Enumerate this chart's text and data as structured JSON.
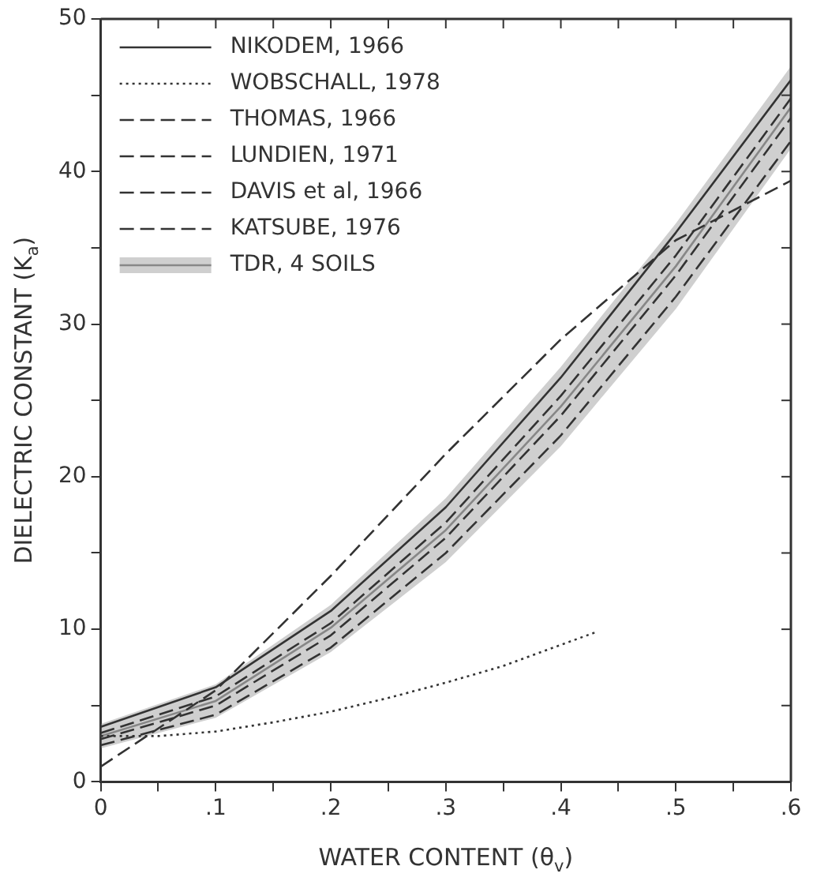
{
  "chart_data": {
    "type": "line",
    "xlabel": "WATER CONTENT (θ$_{v}$)",
    "ylabel": "DIELECTRIC CONSTANT (K$_{a}$)",
    "xlim": [
      0,
      0.6
    ],
    "ylim": [
      0,
      50
    ],
    "xticks": [
      0,
      {
        "value": 0.05,
        "label": null
      },
      {
        "value": 0.1,
        "label": ".1"
      },
      {
        "value": 0.15,
        "label": null
      },
      {
        "value": 0.2,
        "label": ".2"
      },
      {
        "value": 0.25,
        "label": null
      },
      {
        "value": 0.3,
        "label": ".3"
      },
      {
        "value": 0.35,
        "label": null
      },
      {
        "value": 0.4,
        "label": ".4"
      },
      {
        "value": 0.45,
        "label": null
      },
      {
        "value": 0.5,
        "label": ".5"
      },
      {
        "value": 0.55,
        "label": null
      },
      {
        "value": 0.6,
        "label": ".6"
      }
    ],
    "yticks": [
      0,
      {
        "value": 5,
        "label": null
      },
      10,
      {
        "value": 15,
        "label": null
      },
      20,
      {
        "value": 25,
        "label": null
      },
      30,
      {
        "value": 35,
        "label": null
      },
      40,
      {
        "value": 45,
        "label": null
      },
      50
    ],
    "grid": false,
    "legend": "top left",
    "marker": "none",
    "series": [
      {
        "name": "NIKODEM, 1966",
        "color": "#333333",
        "line_style": "solid",
        "x": [
          0,
          0.1,
          0.2,
          0.3,
          0.4,
          0.5,
          0.6
        ],
        "values": [
          3.6,
          6.2,
          11.2,
          18,
          26.5,
          36,
          46
        ]
      },
      {
        "name": "WOBSCHALL, 1978",
        "color": "#333333",
        "line_style": "dotted",
        "x": [
          0,
          0.05,
          0.1,
          0.15,
          0.2,
          0.25,
          0.3,
          0.35,
          0.43
        ],
        "values": [
          3,
          3,
          3.3,
          3.9,
          4.6,
          5.5,
          6.5,
          7.6,
          9.8
        ]
      },
      {
        "name": "THOMAS, 1966",
        "color": "#333333",
        "line_style": "dashed",
        "x": [
          0,
          0.1,
          0.2,
          0.3,
          0.4,
          0.5,
          0.6
        ],
        "values": [
          3.2,
          5.6,
          10.4,
          17,
          25.3,
          34.5,
          44.8
        ]
      },
      {
        "name": "LUNDIEN, 1971",
        "color": "#333333",
        "line_style": "dashed",
        "x": [
          0,
          0.1,
          0.2,
          0.3,
          0.4,
          0.5,
          0.6
        ],
        "values": [
          1,
          6,
          13.5,
          21.5,
          29,
          35.5,
          39.4
        ]
      },
      {
        "name": "DAVIS et al, 1966",
        "color": "#333333",
        "line_style": "dashed",
        "x": [
          0,
          0.1,
          0.2,
          0.3,
          0.4,
          0.5,
          0.6
        ],
        "values": [
          2.8,
          5,
          9.6,
          16,
          24,
          33.2,
          43.5
        ]
      },
      {
        "name": "KATSUBE, 1976",
        "color": "#333333",
        "line_style": "dashed",
        "x": [
          0,
          0.1,
          0.2,
          0.3,
          0.4,
          0.5,
          0.6
        ],
        "values": [
          2.4,
          4.4,
          8.8,
          15,
          22.7,
          31.8,
          42
        ]
      },
      {
        "name": "TDR, 4 SOILS",
        "color": "#888888",
        "line_style": "solid",
        "x": [
          0,
          0.1,
          0.2,
          0.3,
          0.4,
          0.5,
          0.6
        ],
        "values": [
          3,
          5.3,
          10.1,
          16.5,
          24.6,
          33.8,
          44.2
        ],
        "lower": [
          2.2,
          4.2,
          8.5,
          14.4,
          22,
          31,
          41.5
        ],
        "upper": [
          3.8,
          6.4,
          11.6,
          18.6,
          27.2,
          36.6,
          46.9
        ]
      }
    ]
  }
}
